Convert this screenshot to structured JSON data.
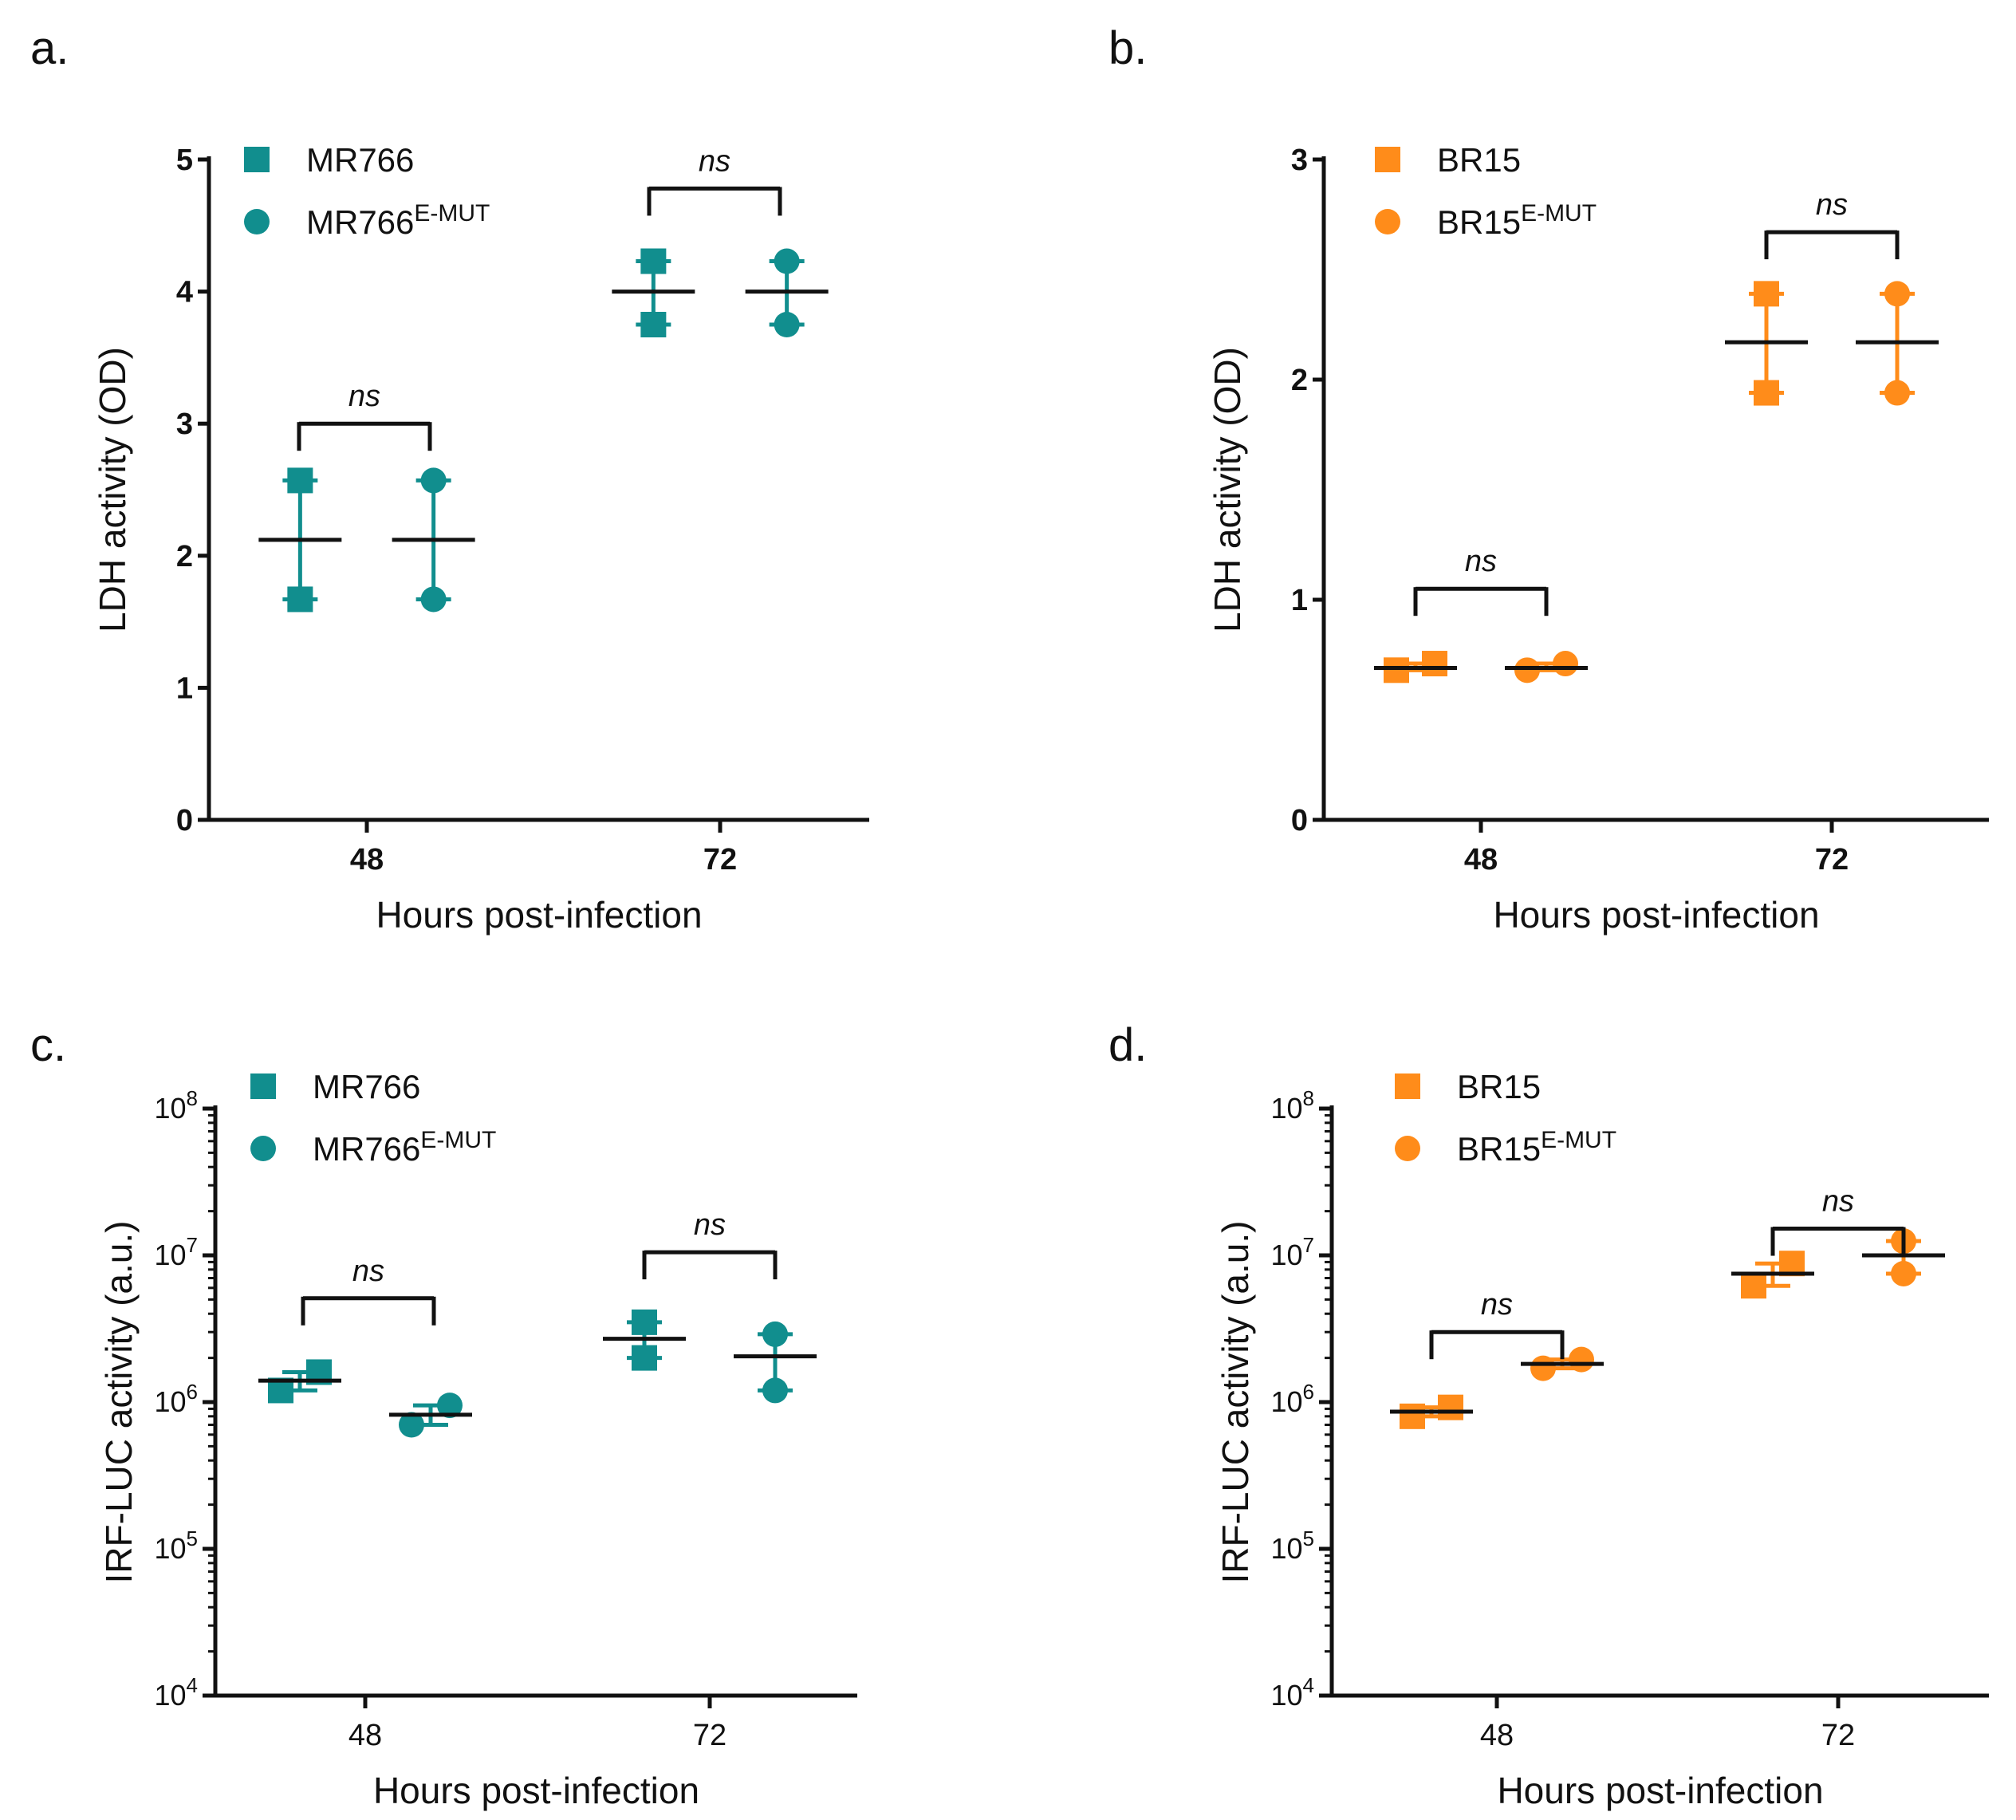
{
  "colors": {
    "teal": "#118e8e",
    "orange": "#ff8c1a",
    "black": "#111111"
  },
  "chart_data": [
    {
      "panel": "a.",
      "type": "scatter",
      "scale": "linear",
      "ylabel": "LDH activity (OD)",
      "xlabel": "Hours post-infection",
      "categories": [
        "48",
        "72"
      ],
      "ylim": [
        0,
        5
      ],
      "yticks": [
        "0",
        "1",
        "2",
        "3",
        "4",
        "5"
      ],
      "bold_ticks": true,
      "color": "teal",
      "legend": {
        "position": "top-left",
        "entries": [
          {
            "marker": "square",
            "label": "MR766",
            "sup": ""
          },
          {
            "marker": "circle",
            "label": "MR766",
            "sup": "E-MUT"
          }
        ]
      },
      "series": [
        {
          "name": "MR766",
          "marker": "square",
          "groups": [
            {
              "x": "48",
              "points": [
                2.57,
                1.67
              ],
              "mean": 2.12,
              "err": [
                1.67,
                2.57
              ]
            },
            {
              "x": "72",
              "points": [
                4.23,
                3.75
              ],
              "mean": 4.0,
              "err": [
                3.75,
                4.23
              ]
            }
          ]
        },
        {
          "name": "MR766 E-MUT",
          "marker": "circle",
          "groups": [
            {
              "x": "48",
              "points": [
                2.57,
                1.67
              ],
              "mean": 2.12,
              "err": [
                1.67,
                2.57
              ]
            },
            {
              "x": "72",
              "points": [
                4.23,
                3.75
              ],
              "mean": 4.0,
              "err": [
                3.75,
                4.23
              ]
            }
          ]
        }
      ],
      "annotations": [
        {
          "category": "48",
          "text": "ns",
          "at": 3.0
        },
        {
          "category": "72",
          "text": "ns",
          "at": 4.78
        }
      ]
    },
    {
      "panel": "b.",
      "type": "scatter",
      "scale": "linear",
      "ylabel": "LDH activity (OD)",
      "xlabel": "Hours post-infection",
      "categories": [
        "48",
        "72"
      ],
      "ylim": [
        0,
        3
      ],
      "yticks": [
        "0",
        "1",
        "2",
        "3"
      ],
      "bold_ticks": true,
      "color": "orange",
      "legend": {
        "position": "top-left",
        "entries": [
          {
            "marker": "square",
            "label": "BR15",
            "sup": ""
          },
          {
            "marker": "circle",
            "label": "BR15",
            "sup": "E-MUT"
          }
        ]
      },
      "series": [
        {
          "name": "BR15",
          "marker": "square",
          "groups": [
            {
              "x": "48",
              "points": [
                0.68,
                0.71
              ],
              "mean": 0.69,
              "err": [
                0.68,
                0.71
              ]
            },
            {
              "x": "72",
              "points": [
                2.39,
                1.94
              ],
              "mean": 2.17,
              "err": [
                1.94,
                2.39
              ]
            }
          ]
        },
        {
          "name": "BR15 E-MUT",
          "marker": "circle",
          "groups": [
            {
              "x": "48",
              "points": [
                0.68,
                0.71
              ],
              "mean": 0.69,
              "err": [
                0.68,
                0.71
              ]
            },
            {
              "x": "72",
              "points": [
                2.39,
                1.94
              ],
              "mean": 2.17,
              "err": [
                1.94,
                2.39
              ]
            }
          ]
        }
      ],
      "annotations": [
        {
          "category": "48",
          "text": "ns",
          "at": 1.05
        },
        {
          "category": "72",
          "text": "ns",
          "at": 2.67
        }
      ]
    },
    {
      "panel": "c.",
      "type": "scatter",
      "scale": "log",
      "ylabel": "IRF-LUC activity (a.u.)",
      "xlabel": "Hours post-infection",
      "categories": [
        "48",
        "72"
      ],
      "ylim": [
        10000,
        100000000
      ],
      "yticks": [
        {
          "base": "10",
          "exp": "4"
        },
        {
          "base": "10",
          "exp": "5"
        },
        {
          "base": "10",
          "exp": "6"
        },
        {
          "base": "10",
          "exp": "7"
        },
        {
          "base": "10",
          "exp": "8"
        }
      ],
      "bold_ticks": false,
      "color": "teal",
      "legend": {
        "position": "top-left",
        "entries": [
          {
            "marker": "square",
            "label": "MR766",
            "sup": ""
          },
          {
            "marker": "circle",
            "label": "MR766",
            "sup": "E-MUT"
          }
        ]
      },
      "series": [
        {
          "name": "MR766",
          "marker": "square",
          "groups": [
            {
              "x": "48",
              "points": [
                1200000,
                1600000
              ],
              "mean": 1400000,
              "err": [
                1200000,
                1600000
              ]
            },
            {
              "x": "72",
              "points": [
                3500000,
                2000000
              ],
              "mean": 2700000,
              "err": [
                2000000,
                3500000
              ]
            }
          ]
        },
        {
          "name": "MR766 E-MUT",
          "marker": "circle",
          "groups": [
            {
              "x": "48",
              "points": [
                700000,
                950000
              ],
              "mean": 820000,
              "err": [
                700000,
                950000
              ]
            },
            {
              "x": "72",
              "points": [
                2900000,
                1200000
              ],
              "mean": 2050000,
              "err": [
                1200000,
                2900000
              ]
            }
          ]
        }
      ],
      "annotations": [
        {
          "category": "48",
          "text": "ns",
          "at": 5100000
        },
        {
          "category": "72",
          "text": "ns",
          "at": 10500000
        }
      ]
    },
    {
      "panel": "d.",
      "type": "scatter",
      "scale": "log",
      "ylabel": "IRF-LUC activity (a.u.)",
      "xlabel": "Hours post-infection",
      "categories": [
        "48",
        "72"
      ],
      "ylim": [
        10000,
        100000000
      ],
      "yticks": [
        {
          "base": "10",
          "exp": "4"
        },
        {
          "base": "10",
          "exp": "5"
        },
        {
          "base": "10",
          "exp": "6"
        },
        {
          "base": "10",
          "exp": "7"
        },
        {
          "base": "10",
          "exp": "8"
        }
      ],
      "bold_ticks": false,
      "color": "orange",
      "legend": {
        "position": "top-left",
        "entries": [
          {
            "marker": "square",
            "label": "BR15",
            "sup": ""
          },
          {
            "marker": "circle",
            "label": "BR15",
            "sup": "E-MUT"
          }
        ]
      },
      "series": [
        {
          "name": "BR15",
          "marker": "square",
          "groups": [
            {
              "x": "48",
              "points": [
                800000,
                920000
              ],
              "mean": 860000,
              "err": [
                800000,
                920000
              ]
            },
            {
              "x": "72",
              "points": [
                6200000,
                8800000
              ],
              "mean": 7500000,
              "err": [
                6200000,
                8800000
              ]
            }
          ]
        },
        {
          "name": "BR15 E-MUT",
          "marker": "circle",
          "groups": [
            {
              "x": "48",
              "points": [
                1700000,
                1950000
              ],
              "mean": 1820000,
              "err": [
                1700000,
                1950000
              ]
            },
            {
              "x": "72",
              "points": [
                7500000,
                12500000
              ],
              "mean": 10000000,
              "err": [
                7500000,
                12500000
              ]
            }
          ]
        }
      ],
      "annotations": [
        {
          "category": "48",
          "text": "ns",
          "at": 3000000
        },
        {
          "category": "72",
          "text": "ns",
          "at": 15200000
        }
      ]
    }
  ]
}
